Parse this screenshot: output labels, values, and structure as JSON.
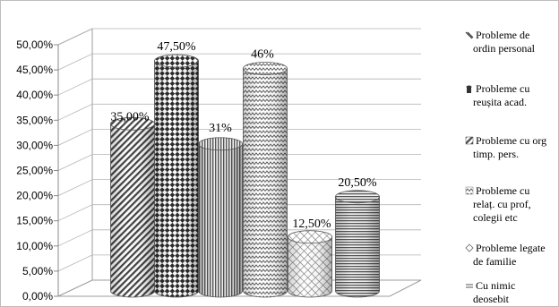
{
  "chart_data": {
    "type": "bar",
    "title": "",
    "xlabel": "",
    "ylabel": "",
    "ylim": [
      0,
      50
    ],
    "yticks": [
      "0,00%",
      "5,00%",
      "10,00%",
      "15,00%",
      "20,00%",
      "25,00%",
      "30,00%",
      "35,00%",
      "40,00%",
      "45,00%",
      "50,00%"
    ],
    "grid": true,
    "legend_position": "right",
    "series": [
      {
        "name": "Probleme de ordin personal",
        "legend_lines": [
          "Probleme de",
          "ordin personal"
        ],
        "value": 35.0,
        "label": "35,00%",
        "pattern": "diag-hatch"
      },
      {
        "name": "Probleme cu reușita acad.",
        "legend_lines": [
          "Probleme cu",
          "reușita acad."
        ],
        "value": 47.5,
        "label": "47,50%",
        "pattern": "diamond-check"
      },
      {
        "name": "Probleme cu org timp. pers.",
        "legend_lines": [
          "Probleme cu org",
          "timp. pers."
        ],
        "value": 31.0,
        "label": "31%",
        "pattern": "vertical-lines"
      },
      {
        "name": "Probleme cu relaț. cu prof, colegii etc",
        "legend_lines": [
          "Probleme cu",
          "relaț. cu prof,",
          "colegii etc"
        ],
        "value": 46.0,
        "label": "46%",
        "pattern": "zigzag"
      },
      {
        "name": "Probleme legate de familie",
        "legend_lines": [
          "Probleme legate",
          "de familie"
        ],
        "value": 12.5,
        "label": "12,50%",
        "pattern": "crosshatch"
      },
      {
        "name": "Cu nimic deosebit",
        "legend_lines": [
          "Cu nimic",
          "deosebit"
        ],
        "value": 20.5,
        "label": "20,50%",
        "pattern": "horizontal-lines"
      }
    ]
  }
}
